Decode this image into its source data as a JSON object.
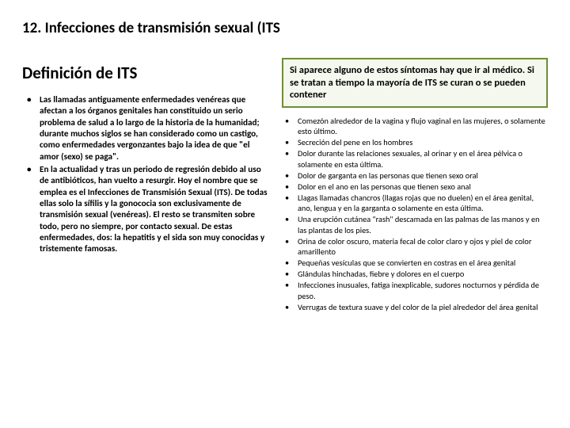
{
  "page_title": "12. Infecciones de transmisión sexual (ITS",
  "left": {
    "heading": "Definición de ITS",
    "bullets": [
      "Las llamadas antiguamente enfermedades venéreas que afectan a los órganos genitales han constituido un serio problema de salud a lo largo de la historia de la humanidad; durante muchos siglos se han considerado como un castigo, como enfermedades vergonzantes bajo la idea de que \"el amor (sexo) se paga\".",
      "En la actualidad y tras un periodo de regresión debido al uso de antibióticos, han vuelto a resurgir. Hoy el nombre que se emplea es el Infecciones de Transmisión Sexual (ITS). De todas ellas solo la sífilis y la gonococia son exclusivamente de transmisión sexual (venéreas). El resto se transmiten sobre todo, pero no siempre, por contacto sexual. De estas enfermedades, dos: la hepatitis y el sida son muy conocidas y tristemente famosas."
    ]
  },
  "right": {
    "callout": "Si aparece alguno de estos síntomas hay que ir al médico.  Si se tratan a tiempo la mayoría de ITS se curan o se pueden contener",
    "bullets": [
      "Comezón alrededor de la vagina y flujo vaginal en las mujeres, o solamente esto último.",
      " Secreción del pene en los hombres",
      "Dolor durante las relaciones sexuales, al orinar y en el área pélvica o solamente en esta última.",
      "Dolor de garganta en las personas que tienen sexo oral",
      "Dolor en el ano en las personas que tienen sexo anal",
      "Llagas llamadas chancros (llagas rojas que no duelen) en el área genital, ano, lengua y en la garganta o solamente en esta última.",
      "Una erupción cutánea \"rash\" descamada en las palmas de las manos y en las plantas de los pies.",
      "Orina de color oscuro, materia fecal de color claro y ojos y piel de color amarillento",
      "Pequeñas vesículas que se convierten en costras en el área genital",
      "Glándulas hinchadas, fiebre y dolores en el cuerpo",
      "Infecciones inusuales, fatiga inexplicable, sudores nocturnos y pérdida de peso.",
      "     Verrugas de textura suave y del color de la piel alrededor del área genital"
    ]
  },
  "colors": {
    "callout_border": "#6f8c3a",
    "callout_bg": "#f5f8ee",
    "text": "#000000",
    "background": "#ffffff"
  }
}
